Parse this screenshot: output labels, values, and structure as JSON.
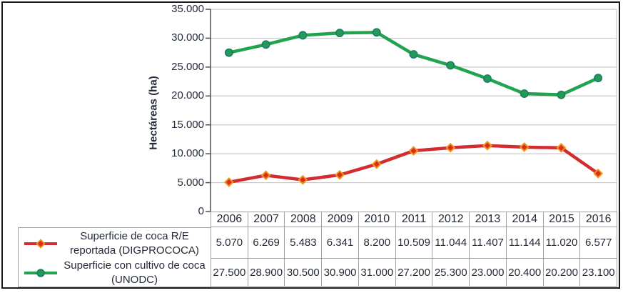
{
  "chart_data": {
    "type": "line",
    "title": "",
    "ylabel": "Hectáreas (ha)",
    "xlabel": "",
    "ylim": [
      0,
      35000
    ],
    "ytick_step": 5000,
    "ytick_labels": [
      "0",
      "5.000",
      "10.000",
      "15.000",
      "20.000",
      "25.000",
      "30.000",
      "35.000"
    ],
    "grid": "horizontal",
    "legend_position": "table-left",
    "categories": [
      "2006",
      "2007",
      "2008",
      "2009",
      "2010",
      "2011",
      "2012",
      "2013",
      "2014",
      "2015",
      "2016"
    ],
    "series": [
      {
        "name": "Superficie de coca R/E reportada (DIGPROCOCA)",
        "color": "#d22b30",
        "marker": "diamond",
        "marker_fill": "#dd2c1e",
        "marker_stroke": "#f0951c",
        "values": [
          5070,
          6269,
          5483,
          6341,
          8200,
          10509,
          11044,
          11407,
          11144,
          11020,
          6577
        ]
      },
      {
        "name": "Superficie con cultivo de coca (UNODC)",
        "color": "#22a44e",
        "marker": "circle",
        "marker_fill": "#259a55",
        "marker_stroke": "#1b7a68",
        "values": [
          27500,
          28900,
          30500,
          30900,
          31000,
          27200,
          25300,
          23000,
          20400,
          20200,
          23100
        ]
      }
    ]
  },
  "table": {
    "year_header": [
      "2006",
      "2007",
      "2008",
      "2009",
      "2010",
      "2011",
      "2012",
      "2013",
      "2014",
      "2015",
      "2016"
    ],
    "rows": [
      {
        "label": "Superficie de coca R/E reportada (DIGPROCOCA)",
        "label_lines": [
          "Superficie de coca R/E",
          "reportada (DIGPROCOCA)"
        ],
        "values": [
          "5.070",
          "6.269",
          "5.483",
          "6.341",
          "8.200",
          "10.509",
          "11.044",
          "11.407",
          "11.144",
          "11.020",
          "6.577"
        ]
      },
      {
        "label": "Superficie con cultivo de coca (UNODC)",
        "label_lines": [
          "Superficie con cultivo de coca",
          "(UNODC)"
        ],
        "values": [
          "27.500",
          "28.900",
          "30.500",
          "30.900",
          "31.000",
          "27.200",
          "25.300",
          "23.000",
          "20.400",
          "20.200",
          "23.100"
        ]
      }
    ]
  },
  "colors": {
    "text": "#242b38",
    "gridline": "#c9c9c9",
    "axis": "#4d4d4d",
    "table_border": "#a0a0a0",
    "series_red": "#d22b30",
    "series_green": "#22a44e"
  }
}
